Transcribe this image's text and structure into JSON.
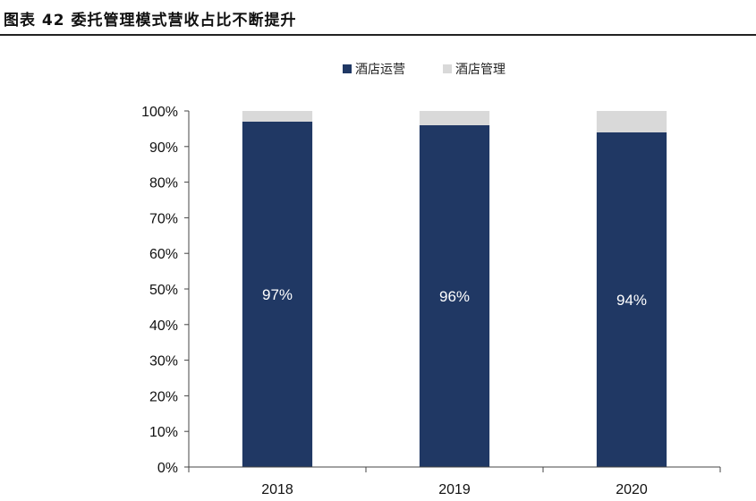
{
  "title": "图表 42  委托管理模式营收占比不断提升",
  "chart_data": {
    "type": "bar",
    "stacked": true,
    "title": "图表 42  委托管理模式营收占比不断提升",
    "categories": [
      "2018",
      "2019",
      "2020"
    ],
    "series": [
      {
        "name": "酒店运营",
        "values": [
          97,
          96,
          94
        ],
        "color": "#203864",
        "labels": [
          "97%",
          "96%",
          "94%"
        ]
      },
      {
        "name": "酒店管理",
        "values": [
          3,
          4,
          6
        ],
        "color": "#d9d9d9"
      }
    ],
    "ylim": [
      0,
      100
    ],
    "yticks": [
      "0%",
      "10%",
      "20%",
      "30%",
      "40%",
      "50%",
      "60%",
      "70%",
      "80%",
      "90%",
      "100%"
    ],
    "legend_position": "top-center",
    "grid": false,
    "xlabel": "",
    "ylabel": ""
  }
}
